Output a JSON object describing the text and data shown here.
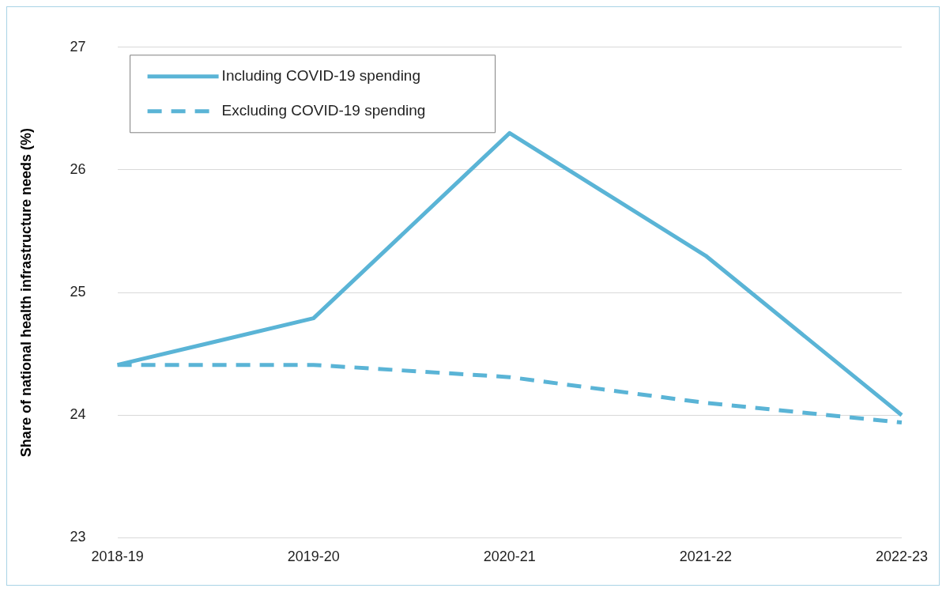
{
  "chart_data": {
    "type": "line",
    "ylabel": "Share of national health infrastructure needs (%)",
    "categories": [
      "2018-19",
      "2019-20",
      "2020-21",
      "2021-22",
      "2022-23"
    ],
    "series": [
      {
        "name": "Including COVID-19 spending",
        "color": "#5ab4d6",
        "line_style": "solid",
        "values": [
          24.41,
          24.79,
          26.3,
          25.3,
          24.0
        ]
      },
      {
        "name": "Excluding COVID-19 spending",
        "color": "#5ab4d6",
        "line_style": "dashed",
        "values": [
          24.41,
          24.41,
          24.31,
          24.1,
          23.94
        ]
      }
    ],
    "ylim": [
      23,
      27
    ],
    "yticks": [
      23,
      24,
      25,
      26,
      27
    ],
    "grid": "y",
    "legend": "top left",
    "marker": "none"
  }
}
